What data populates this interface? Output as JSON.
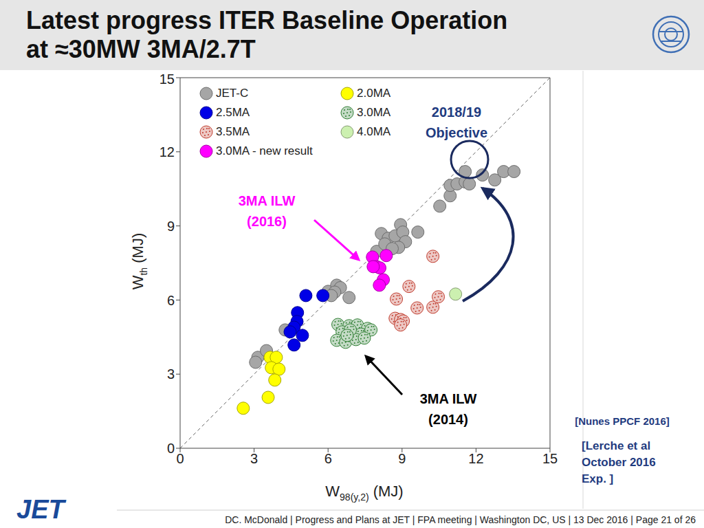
{
  "slide": {
    "title": [
      "Latest progress ITER Baseline Operation",
      "at ≈30MW 3MA/2.7T"
    ],
    "logo_text": "JET",
    "footer": "DC. McDonald | Progress and Plans at JET | FPA meeting  | Washington DC, US | 13 Dec 2016 | Page 21 of 26",
    "references": [
      [
        "[Nunes PPCF 2016]"
      ],
      [
        "[Lerche et al",
        "October 2016",
        "Exp. ]"
      ]
    ]
  },
  "chart_data": {
    "type": "scatter",
    "xlabel": {
      "text": "W",
      "sub": "98(y,2)",
      "unit": " (MJ)"
    },
    "ylabel": {
      "text": "W",
      "sub": "th",
      "unit": " (MJ)"
    },
    "xlim": [
      0,
      15
    ],
    "ylim": [
      0,
      15
    ],
    "xticks": [
      0,
      3,
      6,
      9,
      12,
      15
    ],
    "yticks": [
      0,
      3,
      6,
      9,
      12,
      15
    ],
    "grid": false,
    "legend": "upper left",
    "reference_lines": [
      {
        "x": [
          0,
          15
        ],
        "y": [
          0,
          15
        ],
        "line_style": "dashed"
      }
    ],
    "series": [
      {
        "name": "JET-C",
        "color": "#a6a6a6",
        "marker": "circle",
        "x": [
          3.15,
          3.06,
          3.5,
          4.26,
          6.0,
          6.35,
          6.5,
          6.27,
          6.85,
          6.13,
          7.97,
          8.16,
          8.44,
          8.72,
          8.94,
          9.03,
          9.14,
          8.86,
          9.64,
          8.3,
          8.6,
          10.53,
          10.95,
          10.95,
          11.23,
          11.56,
          11.56,
          11.73,
          12.26,
          12.76,
          13.12,
          13.54
        ],
        "values": [
          3.68,
          3.48,
          3.95,
          4.79,
          6.35,
          6.6,
          6.5,
          6.32,
          6.1,
          6.18,
          7.97,
          8.69,
          8.5,
          8.6,
          9.05,
          8.75,
          8.36,
          8.13,
          8.75,
          8.27,
          8.08,
          9.8,
          10.22,
          10.64,
          10.7,
          10.78,
          11.2,
          10.7,
          11.06,
          10.86,
          11.2,
          11.2
        ]
      },
      {
        "name": "2.0MA",
        "color": "#ffff00",
        "marker": "circle",
        "x": [
          2.56,
          3.57,
          3.65,
          3.9,
          3.7,
          4.01,
          3.84
        ],
        "values": [
          1.62,
          2.06,
          3.68,
          3.68,
          3.26,
          3.2,
          2.76
        ]
      },
      {
        "name": "2.5MA",
        "color": "#0000e6",
        "marker": "circle",
        "x": [
          5.1,
          5.79,
          4.76,
          4.74,
          4.62,
          4.46,
          4.96,
          4.62
        ],
        "values": [
          6.18,
          6.18,
          5.49,
          5.13,
          4.9,
          4.71,
          4.57,
          4.18
        ]
      },
      {
        "name": "3.0MA",
        "color": "#2e7d32",
        "marker": "dotted_circle",
        "x": [
          6.4,
          6.85,
          7.19,
          7.6,
          6.57,
          6.96,
          7.33,
          7.74,
          6.35,
          6.71,
          7.13,
          7.47,
          6.9,
          6.77
        ],
        "values": [
          5.01,
          4.96,
          4.99,
          4.85,
          4.71,
          4.57,
          4.62,
          4.79,
          4.37,
          4.29,
          4.4,
          4.46,
          4.79,
          4.57
        ]
      },
      {
        "name": "3.5MA",
        "color": "#c0392b",
        "marker": "dotted_circle",
        "x": [
          8.77,
          9.28,
          9.61,
          8.72,
          8.94,
          9.05,
          8.94,
          10.25,
          10.47,
          10.25
        ],
        "values": [
          6.04,
          6.55,
          5.68,
          5.26,
          5.21,
          5.15,
          4.99,
          5.71,
          6.13,
          7.77
        ]
      },
      {
        "name": "4.0MA",
        "color": "#ccf0b0",
        "marker": "circle",
        "x": [
          11.17
        ],
        "values": [
          6.24
        ]
      },
      {
        "name": "3.0MA - new result",
        "color": "#ff00ff",
        "marker": "circle",
        "x": [
          7.8,
          8.36,
          7.97,
          8.1,
          8.24,
          8.08,
          7.83
        ],
        "values": [
          7.74,
          7.8,
          7.35,
          7.3,
          6.82,
          6.6,
          7.35
        ]
      }
    ],
    "annotations": [
      {
        "text": [
          "2018/19",
          "Objective"
        ],
        "color": "#1f3b80"
      },
      {
        "text": [
          "3MA ILW",
          "(2016)"
        ],
        "color": "#ff00ff"
      },
      {
        "text": [
          "3MA ILW",
          "(2014)"
        ],
        "color": "#000000"
      }
    ]
  }
}
